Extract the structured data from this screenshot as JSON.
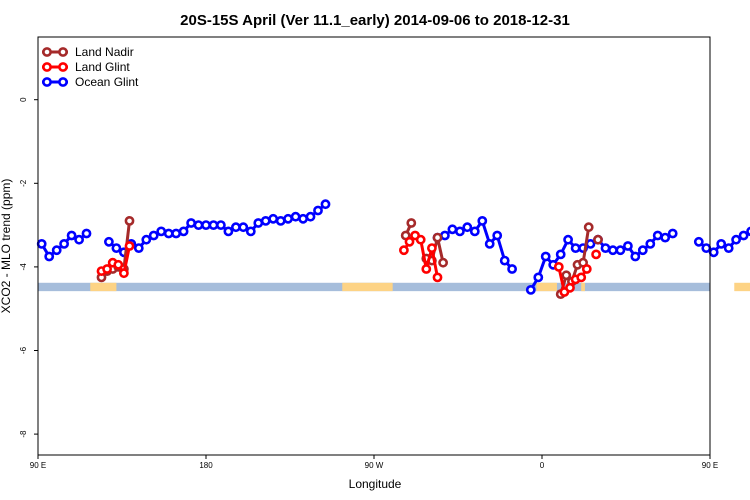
{
  "chart_data": {
    "type": "line",
    "title": "20S-15S April (Ver 11.1_early)   2014-09-06 to 2018-12-31",
    "xlabel": "Longitude",
    "ylabel": "XCO2 - MLO trend (ppm)",
    "xlim": [
      90,
      450
    ],
    "ylim": [
      -8.5,
      1.5
    ],
    "x_ticks": [
      {
        "value": 90,
        "label": "90 E"
      },
      {
        "value": 180,
        "label": "180"
      },
      {
        "value": 270,
        "label": "90 W"
      },
      {
        "value": 360,
        "label": "0"
      },
      {
        "value": 450,
        "label": "90 E"
      },
      {
        "value": 540,
        "label": "180"
      }
    ],
    "y_ticks": [
      {
        "value": 0,
        "label": "0"
      },
      {
        "value": -2,
        "label": "-2"
      },
      {
        "value": -4,
        "label": "-4"
      },
      {
        "value": -6,
        "label": "-6"
      },
      {
        "value": -8,
        "label": "-8"
      }
    ],
    "grid": false,
    "legend_position": "top-left",
    "series": [
      {
        "name": "Land Nadir",
        "color": "#a52a2a",
        "segments": [
          [
            [
              124,
              -4.25
            ],
            [
              127,
              -4.1
            ],
            [
              130,
              -4.05
            ],
            [
              133,
              -4.0
            ],
            [
              136,
              -4.05
            ],
            [
              139,
              -2.9
            ]
          ],
          [
            [
              287,
              -3.25
            ],
            [
              290,
              -2.95
            ]
          ],
          [
            [
              298,
              -3.8
            ],
            [
              301,
              -3.85
            ],
            [
              304,
              -3.3
            ],
            [
              307,
              -3.9
            ]
          ],
          [
            [
              370,
              -4.65
            ],
            [
              373,
              -4.2
            ],
            [
              376,
              -4.35
            ],
            [
              379,
              -3.95
            ],
            [
              382,
              -3.9
            ],
            [
              385,
              -3.05
            ]
          ],
          [
            [
              390,
              -3.35
            ]
          ],
          [
            [
              479,
              -4.25
            ],
            [
              482,
              -4.15
            ],
            [
              485,
              -4.05
            ],
            [
              488,
              -4.0
            ],
            [
              491,
              -4.05
            ],
            [
              494,
              -2.9
            ]
          ]
        ]
      },
      {
        "name": "Land Glint",
        "color": "#ff0000",
        "segments": [
          [
            [
              124,
              -4.1
            ],
            [
              127,
              -4.05
            ],
            [
              130,
              -3.9
            ],
            [
              133,
              -3.95
            ],
            [
              136,
              -4.15
            ],
            [
              139,
              -3.5
            ]
          ],
          [
            [
              286,
              -3.6
            ],
            [
              289,
              -3.4
            ],
            [
              292,
              -3.25
            ],
            [
              295,
              -3.35
            ],
            [
              298,
              -4.05
            ],
            [
              301,
              -3.55
            ],
            [
              304,
              -4.25
            ]
          ],
          [
            [
              369,
              -4.0
            ],
            [
              372,
              -4.6
            ],
            [
              375,
              -4.5
            ],
            [
              378,
              -4.3
            ],
            [
              381,
              -4.25
            ],
            [
              384,
              -4.05
            ]
          ],
          [
            [
              389,
              -3.7
            ]
          ],
          [
            [
              479,
              -4.1
            ],
            [
              482,
              -4.05
            ],
            [
              485,
              -3.9
            ],
            [
              488,
              -3.95
            ],
            [
              491,
              -4.15
            ],
            [
              494,
              -3.5
            ]
          ]
        ]
      },
      {
        "name": "Ocean Glint",
        "color": "#0000ff",
        "segments": [
          [
            [
              92,
              -3.45
            ],
            [
              96,
              -3.75
            ],
            [
              100,
              -3.6
            ],
            [
              104,
              -3.45
            ],
            [
              108,
              -3.25
            ],
            [
              112,
              -3.35
            ],
            [
              116,
              -3.2
            ]
          ],
          [
            [
              128,
              -3.4
            ],
            [
              132,
              -3.55
            ],
            [
              136,
              -3.65
            ],
            [
              140,
              -3.45
            ],
            [
              144,
              -3.55
            ],
            [
              148,
              -3.35
            ],
            [
              152,
              -3.25
            ],
            [
              156,
              -3.15
            ],
            [
              160,
              -3.2
            ],
            [
              164,
              -3.2
            ],
            [
              168,
              -3.15
            ],
            [
              172,
              -2.95
            ],
            [
              176,
              -3.0
            ],
            [
              180,
              -3.0
            ],
            [
              184,
              -3.0
            ],
            [
              188,
              -3.0
            ],
            [
              192,
              -3.15
            ],
            [
              196,
              -3.05
            ],
            [
              200,
              -3.05
            ],
            [
              204,
              -3.15
            ],
            [
              208,
              -2.95
            ],
            [
              212,
              -2.9
            ],
            [
              216,
              -2.85
            ],
            [
              220,
              -2.9
            ],
            [
              224,
              -2.85
            ],
            [
              228,
              -2.8
            ],
            [
              232,
              -2.85
            ],
            [
              236,
              -2.8
            ],
            [
              240,
              -2.65
            ],
            [
              244,
              -2.5
            ]
          ],
          [
            [
              304,
              -3.3
            ],
            [
              308,
              -3.25
            ],
            [
              312,
              -3.1
            ],
            [
              316,
              -3.15
            ],
            [
              320,
              -3.05
            ],
            [
              324,
              -3.15
            ],
            [
              328,
              -2.9
            ],
            [
              332,
              -3.45
            ],
            [
              336,
              -3.25
            ],
            [
              340,
              -3.85
            ],
            [
              344,
              -4.05
            ]
          ],
          [
            [
              354,
              -4.55
            ],
            [
              358,
              -4.25
            ],
            [
              362,
              -3.75
            ],
            [
              366,
              -3.95
            ],
            [
              370,
              -3.7
            ],
            [
              374,
              -3.35
            ],
            [
              378,
              -3.55
            ],
            [
              382,
              -3.55
            ],
            [
              386,
              -3.45
            ],
            [
              390,
              -3.35
            ],
            [
              394,
              -3.55
            ],
            [
              398,
              -3.6
            ],
            [
              402,
              -3.6
            ],
            [
              406,
              -3.5
            ],
            [
              410,
              -3.75
            ],
            [
              414,
              -3.6
            ],
            [
              418,
              -3.45
            ],
            [
              422,
              -3.25
            ],
            [
              426,
              -3.3
            ],
            [
              430,
              -3.2
            ]
          ],
          [
            [
              444,
              -3.4
            ],
            [
              448,
              -3.55
            ],
            [
              452,
              -3.65
            ],
            [
              456,
              -3.45
            ],
            [
              460,
              -3.55
            ],
            [
              464,
              -3.35
            ],
            [
              468,
              -3.25
            ],
            [
              472,
              -3.15
            ]
          ]
        ]
      }
    ],
    "background_bands": [
      {
        "name": "ocean",
        "color": "#a6bddb",
        "y_from": -4.58,
        "y_to": -4.38,
        "x_from": 90,
        "x_to": 450
      },
      {
        "name": "land",
        "color": "#fdd385",
        "x_ranges": [
          [
            118,
            132
          ],
          [
            253,
            280
          ],
          [
            357,
            368
          ],
          [
            381,
            383
          ],
          [
            463,
            479
          ]
        ],
        "y_from": -4.58,
        "y_to": -4.38
      }
    ]
  }
}
